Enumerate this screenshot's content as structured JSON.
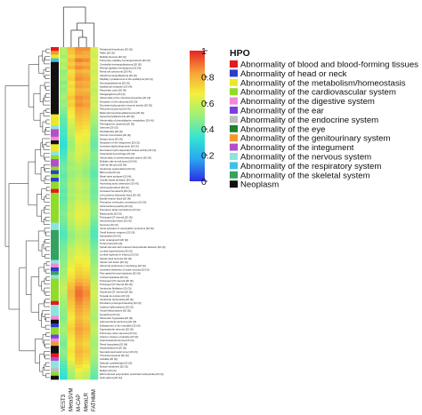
{
  "chart_data": {
    "type": "heatmap",
    "columns": [
      "VEST3",
      "MetaSVM",
      "M-CAP",
      "MetaLR",
      "FATHMM"
    ],
    "colorbar": {
      "min": 0,
      "max": 1,
      "ticks": [
        "0",
        "0.2",
        "0.4",
        "0.6",
        "0.8",
        "1"
      ],
      "colors": [
        "#2b2fe3",
        "#2ba6f0",
        "#33e3d4",
        "#9cf07a",
        "#f3f03b",
        "#f7a33a",
        "#e62424"
      ]
    },
    "legend": {
      "title": "HPO",
      "items": [
        {
          "label": "Abnormality of blood and blood-forming tissues",
          "color": "#e41a1c"
        },
        {
          "label": "Abnormality of head or neck",
          "color": "#2e3cc9"
        },
        {
          "label": "Abnormality of the metabolism/homeostasis",
          "color": "#e9e928"
        },
        {
          "label": "Abnormality of the cardiovascular system",
          "color": "#8fdc2b"
        },
        {
          "label": "Abnormality of the digestive system",
          "color": "#f08ad6"
        },
        {
          "label": "Abnormality of the ear",
          "color": "#7b3fe0"
        },
        {
          "label": "Abnormality of the endocrine system",
          "color": "#bdbdbd"
        },
        {
          "label": "Abnormality of the eye",
          "color": "#1d7f2f"
        },
        {
          "label": "Abnormality of the genitourinary system",
          "color": "#f29a2e"
        },
        {
          "label": "Abnormality of the integument",
          "color": "#b34fc9"
        },
        {
          "label": "Abnormality of the nervous system",
          "color": "#8fe3df"
        },
        {
          "label": "Abnormality of the respiratory system",
          "color": "#3fc1e6"
        },
        {
          "label": "Abnormality of the skeletal system",
          "color": "#33a35f"
        },
        {
          "label": "Neoplasm",
          "color": "#111111"
        }
      ]
    },
    "rows": [
      {
        "label": "Peripheral thrombosis [20 (3)]",
        "cat": 0,
        "v": [
          0.55,
          0.78,
          0.86,
          0.86,
          0.62
        ]
      },
      {
        "label": "Pallor [20 (3)]",
        "cat": 8,
        "v": [
          0.55,
          0.76,
          0.84,
          0.82,
          0.6
        ]
      },
      {
        "label": "Multiple lipomas [20 (4)]",
        "cat": 2,
        "v": [
          0.5,
          0.72,
          0.8,
          0.8,
          0.58
        ]
      },
      {
        "label": "Pulmonary capillary hemangiomatosis [20 (3)]",
        "cat": 11,
        "v": [
          0.58,
          0.78,
          0.88,
          0.86,
          0.64
        ]
      },
      {
        "label": "Cerebellar hemangioblastoma [20 (3)]",
        "cat": 13,
        "v": [
          0.52,
          0.74,
          0.82,
          0.8,
          0.6
        ]
      },
      {
        "label": "Retinal capillary hemangioma [20 (4)]",
        "cat": 13,
        "v": [
          0.55,
          0.78,
          0.86,
          0.84,
          0.62
        ]
      },
      {
        "label": "Renal cell carcinoma [20 (4)]",
        "cat": 13,
        "v": [
          0.48,
          0.7,
          0.8,
          0.78,
          0.58
        ]
      },
      {
        "label": "Spinal hemangioblastoma [20 (3)]",
        "cat": 13,
        "v": [
          0.5,
          0.72,
          0.84,
          0.82,
          0.6
        ]
      },
      {
        "label": "Papillary cystadenoma of the epididymis [20 (4)]",
        "cat": 13,
        "v": [
          0.52,
          0.74,
          0.86,
          0.84,
          0.62
        ]
      },
      {
        "label": "Hemangioblastoma [20 (3)]",
        "cat": 13,
        "v": [
          0.46,
          0.7,
          0.82,
          0.8,
          0.58
        ]
      },
      {
        "label": "Epididymal neoplasm [20 (4)]",
        "cat": 13,
        "v": [
          0.5,
          0.72,
          0.84,
          0.82,
          0.6
        ]
      },
      {
        "label": "Pancreatic cysts [20 (4)]",
        "cat": 13,
        "v": [
          0.48,
          0.7,
          0.8,
          0.78,
          0.56
        ]
      },
      {
        "label": "Paraganglioma [20 (3)]",
        "cat": 13,
        "v": [
          0.5,
          0.72,
          0.82,
          0.82,
          0.58
        ]
      },
      {
        "label": "Abnormality of the chemical properties [20 (4)]",
        "cat": 13,
        "v": [
          0.52,
          0.76,
          0.86,
          0.84,
          0.6
        ]
      },
      {
        "label": "Neoplasm of the pancreas [20 (3)]",
        "cat": 13,
        "v": [
          0.48,
          0.72,
          0.84,
          0.82,
          0.58
        ]
      },
      {
        "label": "Decreased glycoprotein enzyme activity [20 (3)]",
        "cat": 13,
        "v": [
          0.5,
          0.74,
          0.86,
          0.84,
          0.6
        ]
      },
      {
        "label": "Pheochromocytoma [20 (4)]",
        "cat": 13,
        "v": [
          0.46,
          0.7,
          0.82,
          0.8,
          0.58
        ]
      },
      {
        "label": "Maternal hyperphenylalaninemia [20 (4)]",
        "cat": 13,
        "v": [
          0.45,
          0.68,
          0.8,
          0.78,
          0.56
        ]
      },
      {
        "label": "Hyperphenylalaninemia [20 (3)]",
        "cat": 2,
        "v": [
          0.42,
          0.66,
          0.78,
          0.76,
          0.54
        ]
      },
      {
        "label": "Abnormality of phenylalanine metabolism [20 (4)]",
        "cat": 2,
        "v": [
          0.4,
          0.62,
          0.76,
          0.74,
          0.52
        ]
      },
      {
        "label": "Phenylpyruvic acidemia [20 (3)]",
        "cat": 2,
        "v": [
          0.4,
          0.6,
          0.74,
          0.72,
          0.5
        ]
      },
      {
        "label": "Seizures [20 (3)]",
        "cat": 10,
        "v": [
          0.38,
          0.58,
          0.72,
          0.7,
          0.48
        ]
      },
      {
        "label": "Perifolliculitis [20 (3)]",
        "cat": 9,
        "v": [
          0.36,
          0.56,
          0.7,
          0.68,
          0.46
        ]
      },
      {
        "label": "Chronic furunculosis [20 (4)]",
        "cat": 9,
        "v": [
          0.36,
          0.56,
          0.68,
          0.66,
          0.46
        ]
      },
      {
        "label": "Ectopic anus [20 (3)]",
        "cat": 4,
        "v": [
          0.34,
          0.52,
          0.66,
          0.64,
          0.44
        ]
      },
      {
        "label": "Neoplasm of the integument [20 (3)]",
        "cat": 13,
        "v": [
          0.32,
          0.5,
          0.64,
          0.62,
          0.42
        ]
      },
      {
        "label": "Increased alpha-fetoprotein [20 (3)]",
        "cat": 2,
        "v": [
          0.32,
          0.5,
          0.62,
          0.6,
          0.42
        ]
      },
      {
        "label": "Decreased cyclin-dependent kinase activity [20 (4)]",
        "cat": 2,
        "v": [
          0.34,
          0.52,
          0.62,
          0.6,
          0.44
        ]
      },
      {
        "label": "Intracranial hemorrhage [20 (3)]",
        "cat": 10,
        "v": [
          0.36,
          0.54,
          0.62,
          0.58,
          0.46
        ]
      },
      {
        "label": "Abnormality of cerebrovascular system [20 (3)]",
        "cat": 3,
        "v": [
          0.38,
          0.54,
          0.6,
          0.56,
          0.46
        ]
      },
      {
        "label": "Multiple cafe-au-lait spots [20 (4)]",
        "cat": 9,
        "v": [
          0.4,
          0.52,
          0.58,
          0.54,
          0.44
        ]
      },
      {
        "label": "Cafe-au-lait spot [20 (4)]",
        "cat": 9,
        "v": [
          0.42,
          0.5,
          0.56,
          0.52,
          0.44
        ]
      },
      {
        "label": "Ventricular septal defect [20 (3)]",
        "cat": 3,
        "v": [
          0.44,
          0.52,
          0.54,
          0.5,
          0.42
        ]
      },
      {
        "label": "Bifid uvula [20 (3)]",
        "cat": 1,
        "v": [
          0.42,
          0.5,
          0.52,
          0.48,
          0.4
        ]
      },
      {
        "label": "Mitral valve prolapse [20 (4)]",
        "cat": 3,
        "v": [
          0.4,
          0.5,
          0.54,
          0.5,
          0.4
        ]
      },
      {
        "label": "Caudal septal deviation [20 (3)]",
        "cat": 1,
        "v": [
          0.42,
          0.52,
          0.56,
          0.52,
          0.42
        ]
      },
      {
        "label": "Ascending aortic dissection [20 (4)]",
        "cat": 3,
        "v": [
          0.44,
          0.54,
          0.58,
          0.54,
          0.44
        ]
      },
      {
        "label": "Atrial septal defect [20 (4)]",
        "cat": 3,
        "v": [
          0.42,
          0.54,
          0.58,
          0.56,
          0.44
        ]
      },
      {
        "label": "Increased hematocrit [20 (4)]",
        "cat": 0,
        "v": [
          0.4,
          0.52,
          0.56,
          0.54,
          0.42
        ]
      },
      {
        "label": "Left posterior fascicular block [20 (3)]",
        "cat": 3,
        "v": [
          0.42,
          0.54,
          0.58,
          0.56,
          0.44
        ]
      },
      {
        "label": "Bundle branch block [20 (4)]",
        "cat": 3,
        "v": [
          0.4,
          0.52,
          0.58,
          0.56,
          0.44
        ]
      },
      {
        "label": "Premature ventricular contractions [20 (3)]",
        "cat": 3,
        "v": [
          0.42,
          0.54,
          0.6,
          0.58,
          0.46
        ]
      },
      {
        "label": "Atrial cardiomyopathy [20 (3)]",
        "cat": 3,
        "v": [
          0.44,
          0.56,
          0.62,
          0.6,
          0.48
        ]
      },
      {
        "label": "Premature atrial contractions [20 (3)]",
        "cat": 3,
        "v": [
          0.44,
          0.56,
          0.62,
          0.62,
          0.48
        ]
      },
      {
        "label": "Bradycardia [20 (3)]",
        "cat": 3,
        "v": [
          0.46,
          0.58,
          0.64,
          0.62,
          0.48
        ]
      },
      {
        "label": "Prolonged QT interval [20 (3)]",
        "cat": 3,
        "v": [
          0.44,
          0.58,
          0.64,
          0.62,
          0.46
        ]
      },
      {
        "label": "Atrioventricular block [20 (4)]",
        "cat": 3,
        "v": [
          0.44,
          0.56,
          0.62,
          0.6,
          0.44
        ]
      },
      {
        "label": "Syncope [20 (3)]",
        "cat": 10,
        "v": [
          0.42,
          0.54,
          0.6,
          0.58,
          0.42
        ]
      },
      {
        "label": "Acute episodes of neuropathic symptoms [20 (3)]",
        "cat": 10,
        "v": [
          0.4,
          0.52,
          0.58,
          0.56,
          0.4
        ]
      },
      {
        "label": "Small foramen magnum [20 (3)]",
        "cat": 12,
        "v": [
          0.38,
          0.5,
          0.56,
          0.54,
          0.38
        ]
      },
      {
        "label": "Hypoplasia [20 (4)]",
        "cat": 12,
        "v": [
          0.38,
          0.48,
          0.54,
          0.52,
          0.38
        ]
      },
      {
        "label": "Limb undergrowth [20 (3)]",
        "cat": 12,
        "v": [
          0.4,
          0.5,
          0.56,
          0.54,
          0.4
        ]
      },
      {
        "label": "Trident hand [20 (4)]",
        "cat": 12,
        "v": [
          0.42,
          0.52,
          0.58,
          0.56,
          0.42
        ]
      },
      {
        "label": "Spinal stenosis with reduced interpedicular distance [20 (4)]",
        "cat": 12,
        "v": [
          0.44,
          0.56,
          0.6,
          0.58,
          0.44
        ]
      },
      {
        "label": "Lumbar hyperlordosis [20 (3)]",
        "cat": 12,
        "v": [
          0.44,
          0.58,
          0.62,
          0.6,
          0.46
        ]
      },
      {
        "label": "Lumbar kyphosis in infancy [20 (3)]",
        "cat": 12,
        "v": [
          0.46,
          0.58,
          0.64,
          0.62,
          0.46
        ]
      },
      {
        "label": "Spinal canal stenosis [20 (3)]",
        "cat": 12,
        "v": [
          0.46,
          0.6,
          0.66,
          0.64,
          0.48
        ]
      },
      {
        "label": "Spinal cord lesion [20 (3)]",
        "cat": 10,
        "v": [
          0.48,
          0.62,
          0.68,
          0.66,
          0.48
        ]
      },
      {
        "label": "Abnormal peritoneum morphology [20 (4)]",
        "cat": 4,
        "v": [
          0.48,
          0.64,
          0.7,
          0.68,
          0.5
        ]
      },
      {
        "label": "Increased thickness of nasal mucosa [20 (3)]",
        "cat": 1,
        "v": [
          0.5,
          0.66,
          0.72,
          0.7,
          0.52
        ]
      },
      {
        "label": "Flat capital femoral epiphysis [20 (4)]",
        "cat": 12,
        "v": [
          0.5,
          0.68,
          0.74,
          0.72,
          0.52
        ]
      },
      {
        "label": "Cortical dysplasia [20 (3)]",
        "cat": 10,
        "v": [
          0.52,
          0.7,
          0.76,
          0.74,
          0.54
        ]
      },
      {
        "label": "Prolonged QTc interval [20 (3)]",
        "cat": 3,
        "v": [
          0.54,
          0.72,
          0.8,
          0.78,
          0.56
        ]
      },
      {
        "label": "Prolonged QT interval [20 (3)]",
        "cat": 3,
        "v": [
          0.56,
          0.76,
          0.84,
          0.8,
          0.58
        ]
      },
      {
        "label": "Ventricular fibrillation [20 (3)]",
        "cat": 3,
        "v": [
          0.58,
          0.78,
          0.88,
          0.84,
          0.58
        ]
      },
      {
        "label": "Shortened QT interval [20 (3)]",
        "cat": 3,
        "v": [
          0.56,
          0.8,
          0.9,
          0.86,
          0.6
        ]
      },
      {
        "label": "Torsade de pointes [20 (4)]",
        "cat": 3,
        "v": [
          0.54,
          0.8,
          0.9,
          0.86,
          0.6
        ]
      },
      {
        "label": "Ventricular tachycardia [20 (4)]",
        "cat": 3,
        "v": [
          0.52,
          0.78,
          0.88,
          0.84,
          0.58
        ]
      },
      {
        "label": "Persistent prolonged bleeding [20 (3)]",
        "cat": 0,
        "v": [
          0.5,
          0.76,
          0.86,
          0.82,
          0.56
        ]
      },
      {
        "label": "Auditory hallucinations [20 (3)]",
        "cat": 10,
        "v": [
          0.5,
          0.74,
          0.84,
          0.8,
          0.56
        ]
      },
      {
        "label": "Visual hallucinations [20 (3)]",
        "cat": 10,
        "v": [
          0.48,
          0.72,
          0.82,
          0.78,
          0.54
        ]
      },
      {
        "label": "Dysarthria [20 (3)]",
        "cat": 10,
        "v": [
          0.48,
          0.7,
          0.8,
          0.76,
          0.54
        ]
      },
      {
        "label": "Pancreatic hypoplasia [20 (3)]",
        "cat": 4,
        "v": [
          0.46,
          0.68,
          0.78,
          0.74,
          0.52
        ]
      },
      {
        "label": "Adrenocortical carcinoma [20 (3)]",
        "cat": 13,
        "v": [
          0.48,
          0.7,
          0.8,
          0.76,
          0.54
        ]
      },
      {
        "label": "Enlargement of the mandible [20 (4)]",
        "cat": 1,
        "v": [
          0.5,
          0.72,
          0.82,
          0.78,
          0.56
        ]
      },
      {
        "label": "Supravalvular stenosis [20 (3)]",
        "cat": 3,
        "v": [
          0.52,
          0.74,
          0.84,
          0.8,
          0.58
        ]
      },
      {
        "label": "Pulmonary valve stenosis [20 (3)]",
        "cat": 3,
        "v": [
          0.5,
          0.72,
          0.82,
          0.78,
          0.56
        ]
      },
      {
        "label": "Anterior creases of earlobe [20 (3)]",
        "cat": 5,
        "v": [
          0.48,
          0.7,
          0.8,
          0.76,
          0.54
        ]
      },
      {
        "label": "Gastrointestinal stroma [20 (3)]",
        "cat": 4,
        "v": [
          0.46,
          0.68,
          0.78,
          0.74,
          0.52
        ]
      },
      {
        "label": "Renal hypoplasia [20 (4)]",
        "cat": 8,
        "v": [
          0.44,
          0.66,
          0.76,
          0.72,
          0.5
        ]
      },
      {
        "label": "Hepatoblastoma [20 (3)]",
        "cat": 13,
        "v": [
          0.46,
          0.68,
          0.78,
          0.74,
          0.52
        ]
      },
      {
        "label": "Neonatal pancreatic tumor [20 (3)]",
        "cat": 13,
        "v": [
          0.48,
          0.7,
          0.8,
          0.76,
          0.54
        ]
      },
      {
        "label": "Thrombocytopenia [20 (3)]",
        "cat": 0,
        "v": [
          0.46,
          0.68,
          0.78,
          0.74,
          0.52
        ]
      },
      {
        "label": "Cellulitis [20 (3)]",
        "cat": 9,
        "v": [
          0.44,
          0.66,
          0.76,
          0.72,
          0.5
        ]
      },
      {
        "label": "Episodic quadriplegia [20 (3)]",
        "cat": 10,
        "v": [
          0.4,
          0.62,
          0.74,
          0.7,
          0.48
        ]
      },
      {
        "label": "Muscle weakness [20 (3)]",
        "cat": 10,
        "v": [
          0.38,
          0.58,
          0.7,
          0.66,
          0.46
        ]
      },
      {
        "label": "Mullein [20 (3)]",
        "cat": 6,
        "v": [
          0.36,
          0.54,
          0.66,
          0.62,
          0.44
        ]
      },
      {
        "label": "Effort induced polymorphic ventricular tachycardia [20 (3)]",
        "cat": 3,
        "v": [
          0.34,
          0.52,
          0.62,
          0.58,
          0.42
        ]
      },
      {
        "label": "Optic glioma [20 (4)]",
        "cat": 13,
        "v": [
          0.32,
          0.5,
          0.6,
          0.56,
          0.4
        ]
      }
    ]
  }
}
